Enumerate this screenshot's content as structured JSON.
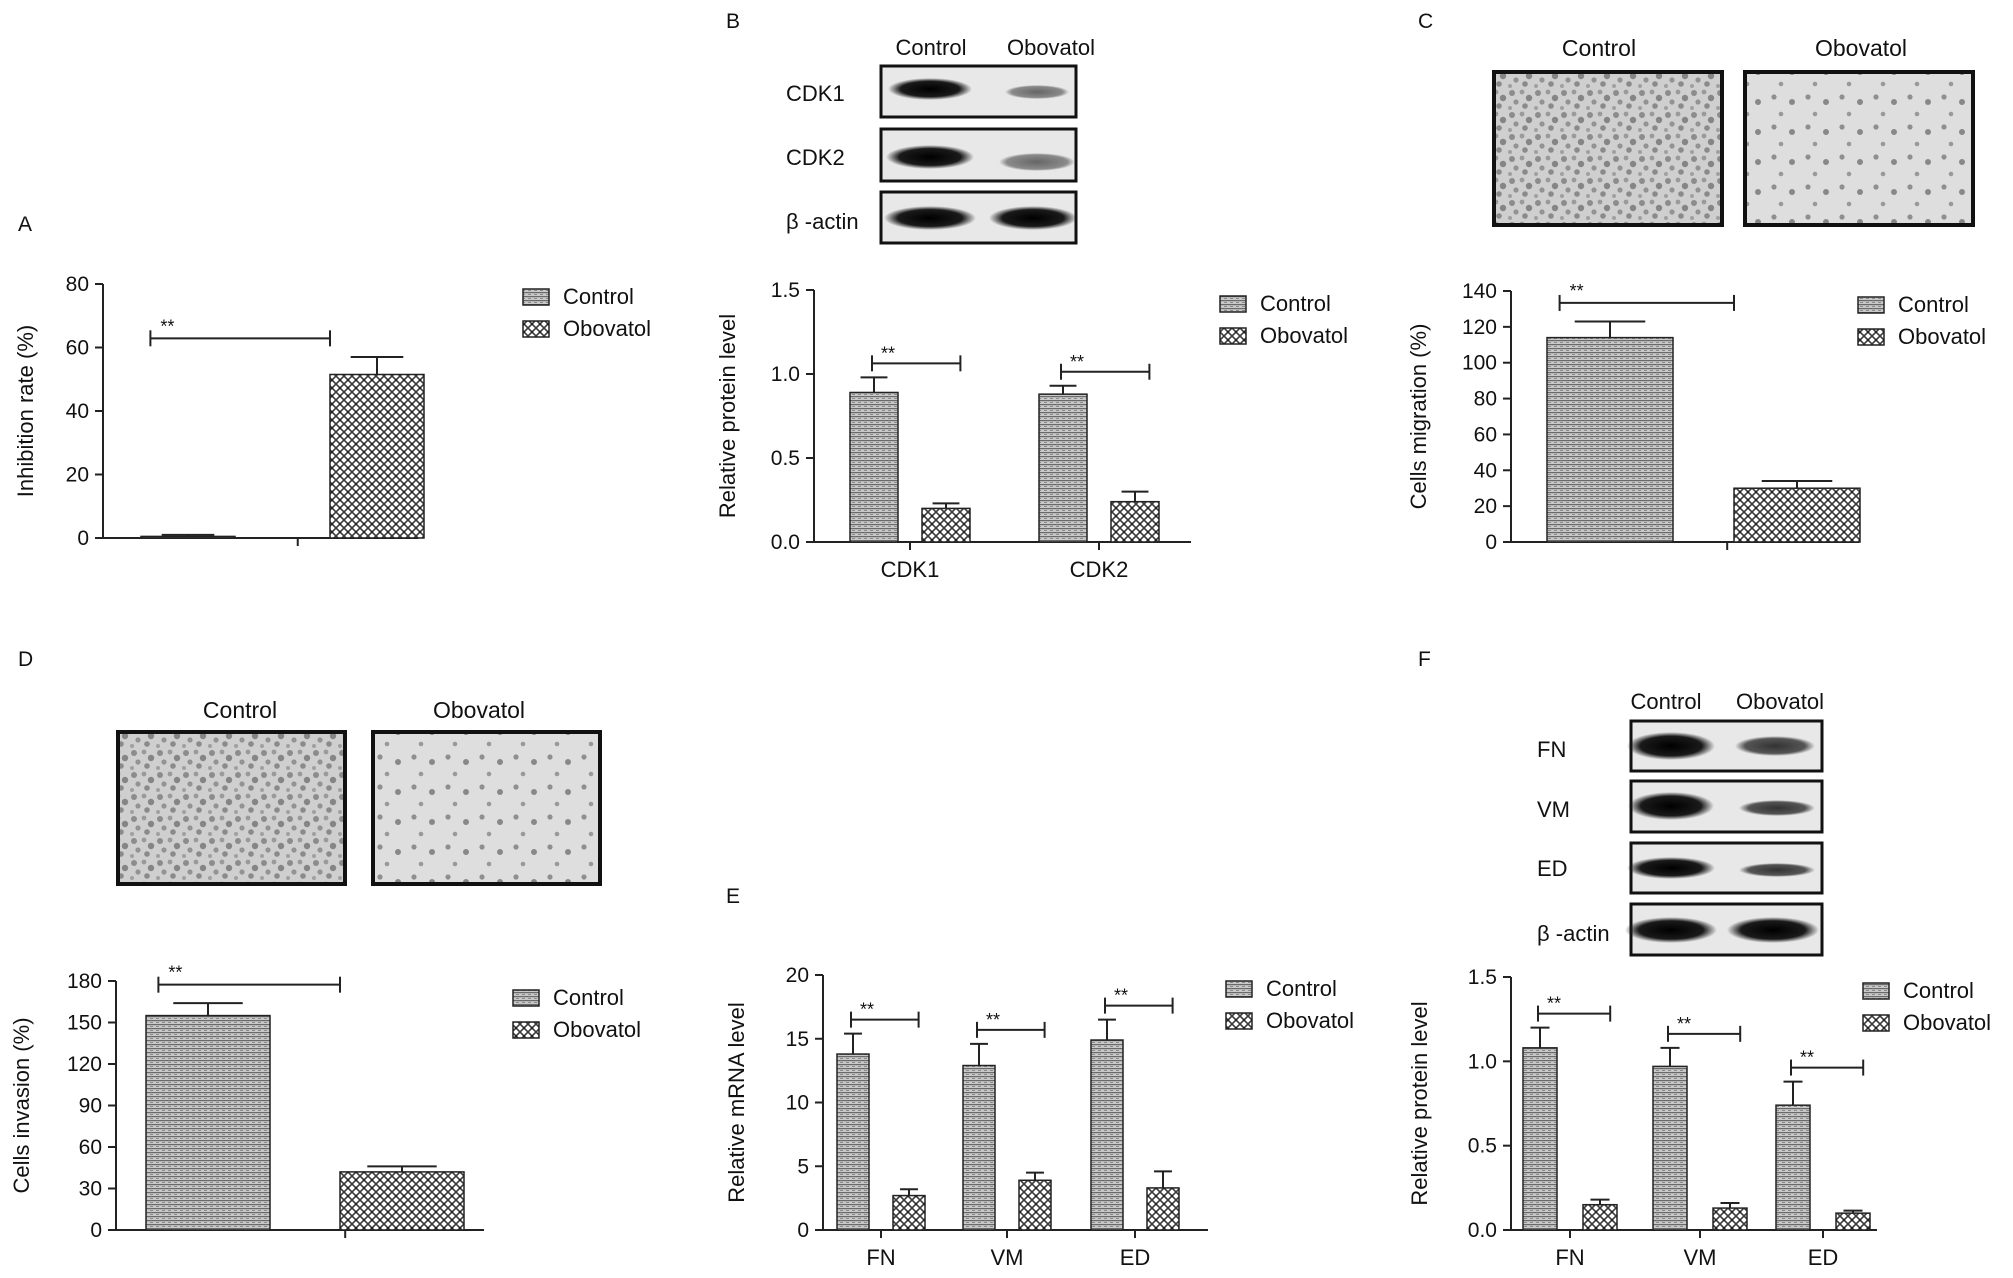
{
  "legend": {
    "control": "Control",
    "obovatol": "Obovatol"
  },
  "significance": "**",
  "panels": {
    "A": {
      "letter": "A",
      "ylabel": "Inhibition rate (%)"
    },
    "B": {
      "letter": "B",
      "ylabel": "Relative protein level",
      "blot": {
        "headers": [
          "Control",
          "Obovatol"
        ],
        "rows": [
          "CDK1",
          "CDK2",
          "β -actin"
        ]
      }
    },
    "C": {
      "letter": "C",
      "ylabel": "Cells migration (%)",
      "image_labels": [
        "Control",
        "Obovatol"
      ]
    },
    "D": {
      "letter": "D",
      "ylabel": "Cells invasion (%)",
      "image_labels": [
        "Control",
        "Obovatol"
      ]
    },
    "E": {
      "letter": "E",
      "ylabel": "Relative mRNA level"
    },
    "F": {
      "letter": "F",
      "ylabel": "Relative protein level",
      "blot": {
        "headers": [
          "Control",
          "Obovatol"
        ],
        "rows": [
          "FN",
          "VM",
          "ED",
          "β -actin"
        ]
      }
    }
  },
  "chart_data": [
    {
      "panel": "A",
      "type": "bar",
      "categories": [
        ""
      ],
      "ylabel": "Inhibition rate (%)",
      "ylim": [
        0,
        80
      ],
      "yticks": [
        0,
        20,
        40,
        60,
        80
      ],
      "series": [
        {
          "name": "Control",
          "values": [
            0.5
          ],
          "errors": [
            0.5
          ]
        },
        {
          "name": "Obovatol",
          "values": [
            51.5
          ],
          "errors": [
            5.5
          ]
        }
      ],
      "significance": [
        {
          "label": "**",
          "category": 0
        }
      ]
    },
    {
      "panel": "B",
      "type": "bar",
      "categories": [
        "CDK1",
        "CDK2"
      ],
      "ylabel": "Relative protein level",
      "ylim": [
        0,
        1.5
      ],
      "yticks": [
        0.0,
        0.5,
        1.0,
        1.5
      ],
      "series": [
        {
          "name": "Control",
          "values": [
            0.89,
            0.88
          ],
          "errors": [
            0.09,
            0.05
          ]
        },
        {
          "name": "Obovatol",
          "values": [
            0.2,
            0.24
          ],
          "errors": [
            0.03,
            0.06
          ]
        }
      ],
      "significance": [
        {
          "label": "**",
          "category": 0
        },
        {
          "label": "**",
          "category": 1
        }
      ]
    },
    {
      "panel": "C",
      "type": "bar",
      "categories": [
        ""
      ],
      "ylabel": "Cells migration (%)",
      "ylim": [
        0,
        140
      ],
      "yticks": [
        0,
        20,
        40,
        60,
        80,
        100,
        120,
        140
      ],
      "series": [
        {
          "name": "Control",
          "values": [
            114
          ],
          "errors": [
            9
          ]
        },
        {
          "name": "Obovatol",
          "values": [
            30
          ],
          "errors": [
            4
          ]
        }
      ],
      "significance": [
        {
          "label": "**",
          "category": 0
        }
      ]
    },
    {
      "panel": "D",
      "type": "bar",
      "categories": [
        ""
      ],
      "ylabel": "Cells invasion (%)",
      "ylim": [
        0,
        180
      ],
      "yticks": [
        0,
        30,
        60,
        90,
        120,
        150,
        180
      ],
      "series": [
        {
          "name": "Control",
          "values": [
            155
          ],
          "errors": [
            9
          ]
        },
        {
          "name": "Obovatol",
          "values": [
            42
          ],
          "errors": [
            4
          ]
        }
      ],
      "significance": [
        {
          "label": "**",
          "category": 0
        }
      ]
    },
    {
      "panel": "E",
      "type": "bar",
      "categories": [
        "FN",
        "VM",
        "ED"
      ],
      "ylabel": "Relative mRNA level",
      "ylim": [
        0,
        20
      ],
      "yticks": [
        0,
        5,
        10,
        15,
        20
      ],
      "series": [
        {
          "name": "Control",
          "values": [
            13.8,
            12.9,
            14.9
          ],
          "errors": [
            1.6,
            1.7,
            1.6
          ]
        },
        {
          "name": "Obovatol",
          "values": [
            2.7,
            3.9,
            3.3
          ],
          "errors": [
            0.5,
            0.6,
            1.3
          ]
        }
      ],
      "significance": [
        {
          "label": "**",
          "category": 0
        },
        {
          "label": "**",
          "category": 1
        },
        {
          "label": "**",
          "category": 2
        }
      ]
    },
    {
      "panel": "F",
      "type": "bar",
      "categories": [
        "FN",
        "VM",
        "ED"
      ],
      "ylabel": "Relative protein level",
      "ylim": [
        0,
        1.5
      ],
      "yticks": [
        0.0,
        0.5,
        1.0,
        1.5
      ],
      "series": [
        {
          "name": "Control",
          "values": [
            1.08,
            0.97,
            0.74
          ],
          "errors": [
            0.12,
            0.11,
            0.14
          ]
        },
        {
          "name": "Obovatol",
          "values": [
            0.15,
            0.13,
            0.1
          ],
          "errors": [
            0.03,
            0.03,
            0.015
          ]
        }
      ],
      "significance": [
        {
          "label": "**",
          "category": 0
        },
        {
          "label": "**",
          "category": 1
        },
        {
          "label": "**",
          "category": 2
        }
      ]
    }
  ]
}
